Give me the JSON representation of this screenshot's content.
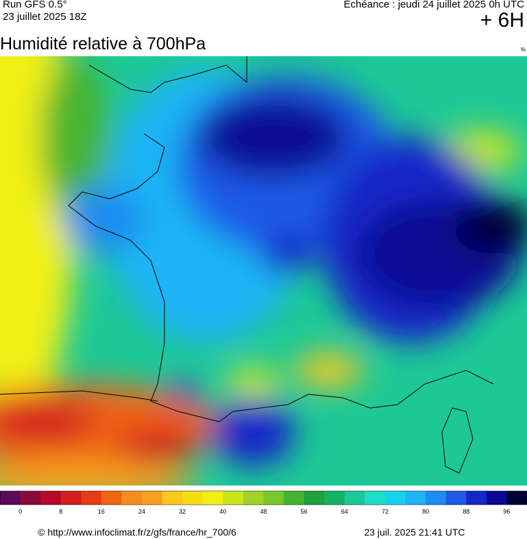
{
  "header": {
    "run": "Run GFS 0.5°",
    "run_date": "23 juillet 2025 18Z",
    "valid": "Echéance : jeudi 24 juillet 2025 0h UTC",
    "lead": "+ 6H",
    "title": "Humidité relative à 700hPa",
    "unit": "%"
  },
  "colorbar": {
    "colors": [
      "#5a0a5a",
      "#8a0a3a",
      "#b40a28",
      "#d21e1e",
      "#e63c14",
      "#f06414",
      "#f58c1e",
      "#f5a01e",
      "#fac81e",
      "#f5dc14",
      "#f0f014",
      "#c8e61e",
      "#a0d228",
      "#78c828",
      "#46b432",
      "#1ea03c",
      "#14b464",
      "#1ec896",
      "#1edcc8",
      "#14d2f0",
      "#1eb4f5",
      "#1e8cf0",
      "#1e5ae6",
      "#1428c8",
      "#0a0a96",
      "#000032"
    ],
    "labels": [
      0,
      8,
      16,
      24,
      32,
      40,
      48,
      56,
      64,
      72,
      80,
      88,
      96
    ]
  },
  "footer": {
    "source": "© http://www.infoclimat.fr/z/gfs/france/hr_700/6",
    "generated": "23 juil. 2025 21:41 UTC"
  }
}
